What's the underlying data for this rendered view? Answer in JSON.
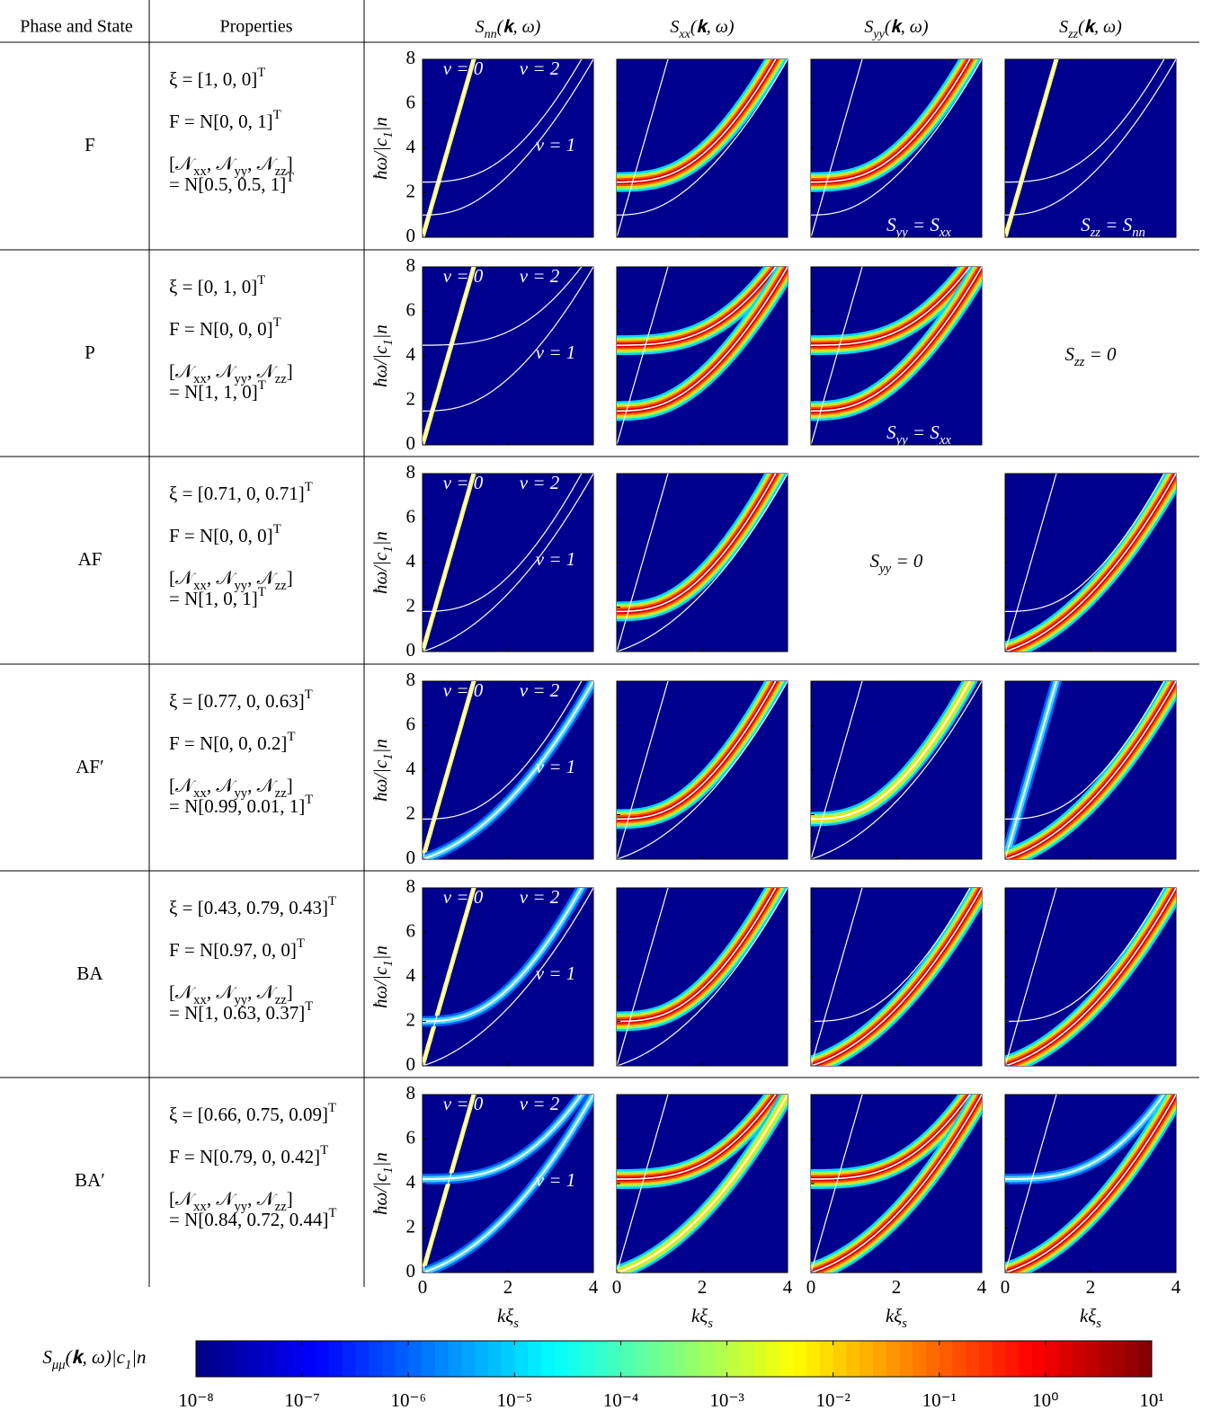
{
  "header": {
    "phase": "Phase and State",
    "properties": "Properties",
    "columns": [
      [
        "S",
        {
          "sub": "nn"
        },
        "(𝐤, ω)"
      ],
      [
        "S",
        {
          "sub": "xx"
        },
        "(𝐤, ω)"
      ],
      [
        "S",
        {
          "sub": "yy"
        },
        "(𝐤, ω)"
      ],
      [
        "S",
        {
          "sub": "zz"
        },
        "(𝐤, ω)"
      ]
    ]
  },
  "rows": [
    {
      "phase": "F",
      "xi": [
        "ξ = [1, 0, 0]",
        {
          "sup": "T"
        }
      ],
      "F": [
        "F = N[0, 0, 1]",
        {
          "sup": "T"
        }
      ],
      "N": [
        "[𝒩",
        {
          "sub": "xx"
        },
        ", 𝒩",
        {
          "sub": "yy"
        },
        ", 𝒩",
        {
          "sub": "zz"
        },
        "]"
      ],
      "N_value": [
        "= N[0.5, 0.5, 1]",
        {
          "sup": "T"
        }
      ],
      "nu_labels": [
        "ν = 0",
        "ν = 2",
        "ν = 1"
      ],
      "panels": [
        {
          "type": "plot"
        },
        {
          "type": "plot"
        },
        {
          "type": "plot",
          "note": [
            "S",
            {
              "sub": "yy"
            },
            " = S",
            {
              "sub": "xx"
            }
          ]
        },
        {
          "type": "plot",
          "note": [
            "S",
            {
              "sub": "zz"
            },
            " = S",
            {
              "sub": "nn"
            }
          ]
        }
      ]
    },
    {
      "phase": "P",
      "xi": [
        "ξ = [0, 1, 0]",
        {
          "sup": "T"
        }
      ],
      "F": [
        "F = N[0, 0, 0]",
        {
          "sup": "T"
        }
      ],
      "N": [
        "[𝒩",
        {
          "sub": "xx"
        },
        ", 𝒩",
        {
          "sub": "yy"
        },
        ", 𝒩",
        {
          "sub": "zz"
        },
        "]"
      ],
      "N_value": [
        "= N[1, 1, 0]",
        {
          "sup": "T"
        }
      ],
      "nu_labels": [
        "ν = 0",
        "ν = 2",
        "ν = 1"
      ],
      "panels": [
        {
          "type": "plot"
        },
        {
          "type": "plot"
        },
        {
          "type": "plot",
          "note": [
            "S",
            {
              "sub": "yy"
            },
            " = S",
            {
              "sub": "xx"
            }
          ]
        },
        {
          "type": "blank",
          "note": [
            "S",
            {
              "sub": "zz"
            },
            " = 0"
          ]
        }
      ]
    },
    {
      "phase": "AF",
      "xi": [
        "ξ = [0.71, 0, 0.71]",
        {
          "sup": "T"
        }
      ],
      "F": [
        "F = N[0, 0, 0]",
        {
          "sup": "T"
        }
      ],
      "N": [
        "[𝒩",
        {
          "sub": "xx"
        },
        ", 𝒩",
        {
          "sub": "yy"
        },
        ", 𝒩",
        {
          "sub": "zz"
        },
        "]"
      ],
      "N_value": [
        "= N[1, 0, 1]",
        {
          "sup": "T"
        }
      ],
      "nu_labels": [
        "ν = 0",
        "ν = 2",
        "ν = 1"
      ],
      "panels": [
        {
          "type": "plot"
        },
        {
          "type": "plot"
        },
        {
          "type": "blank",
          "note": [
            "S",
            {
              "sub": "yy"
            },
            " = 0"
          ]
        },
        {
          "type": "plot"
        }
      ]
    },
    {
      "phase": "AF′",
      "xi": [
        "ξ = [0.77, 0, 0.63]",
        {
          "sup": "T"
        }
      ],
      "F": [
        "F = N[0, 0, 0.2]",
        {
          "sup": "T"
        }
      ],
      "N": [
        "[𝒩",
        {
          "sub": "xx"
        },
        ", 𝒩",
        {
          "sub": "yy"
        },
        ", 𝒩",
        {
          "sub": "zz"
        },
        "]"
      ],
      "N_value": [
        "= N[0.99, 0.01, 1]",
        {
          "sup": "T"
        }
      ],
      "nu_labels": [
        "ν = 0",
        "ν = 2",
        "ν = 1"
      ],
      "panels": [
        {
          "type": "plot"
        },
        {
          "type": "plot"
        },
        {
          "type": "plot"
        },
        {
          "type": "plot"
        }
      ]
    },
    {
      "phase": "BA",
      "xi": [
        "ξ = [0.43, 0.79, 0.43]",
        {
          "sup": "T"
        }
      ],
      "F": [
        "F = N[0.97, 0, 0]",
        {
          "sup": "T"
        }
      ],
      "N": [
        "[𝒩",
        {
          "sub": "xx"
        },
        ", 𝒩",
        {
          "sub": "yy"
        },
        ", 𝒩",
        {
          "sub": "zz"
        },
        "]"
      ],
      "N_value": [
        "= N[1, 0.63, 0.37]",
        {
          "sup": "T"
        }
      ],
      "nu_labels": [
        "ν = 0",
        "ν = 2",
        "ν = 1"
      ],
      "panels": [
        {
          "type": "plot"
        },
        {
          "type": "plot"
        },
        {
          "type": "plot"
        },
        {
          "type": "plot"
        }
      ]
    },
    {
      "phase": "BA′",
      "xi": [
        "ξ = [0.66, 0.75, 0.09]",
        {
          "sup": "T"
        }
      ],
      "F": [
        "F = N[0.79, 0, 0.42]",
        {
          "sup": "T"
        }
      ],
      "N": [
        "[𝒩",
        {
          "sub": "xx"
        },
        ", 𝒩",
        {
          "sub": "yy"
        },
        ", 𝒩",
        {
          "sub": "zz"
        },
        "]"
      ],
      "N_value": [
        "= N[0.84, 0.72, 0.44]",
        {
          "sup": "T"
        }
      ],
      "nu_labels": [
        "ν = 0",
        "ν = 2",
        "ν = 1"
      ],
      "panels": [
        {
          "type": "plot"
        },
        {
          "type": "plot"
        },
        {
          "type": "plot"
        },
        {
          "type": "plot"
        }
      ]
    }
  ],
  "y_axis": {
    "label": [
      "ħω/|c",
      {
        "sub": "1"
      },
      "|n"
    ],
    "lim": [
      0,
      8
    ],
    "ticks": [
      0,
      2,
      4,
      6,
      8
    ]
  },
  "x_axis": {
    "label": [
      "kξ",
      {
        "sub": "s"
      }
    ],
    "lim": [
      0,
      4
    ],
    "ticks": [
      0,
      2,
      4
    ]
  },
  "colorbar": {
    "label": [
      "S",
      {
        "sub": "μμ"
      },
      "(𝐤, ω)|c",
      {
        "sub": "1"
      },
      "|n"
    ],
    "scale": "log",
    "lim": [
      1e-08,
      10
    ],
    "ticks": [
      {
        "value": 1e-08,
        "label": "10⁻⁸"
      },
      {
        "value": 1e-07,
        "label": "10⁻⁷"
      },
      {
        "value": 1e-06,
        "label": "10⁻⁶"
      },
      {
        "value": 1e-05,
        "label": "10⁻⁵"
      },
      {
        "value": 0.0001,
        "label": "10⁻⁴"
      },
      {
        "value": 0.001,
        "label": "10⁻³"
      },
      {
        "value": 0.01,
        "label": "10⁻²"
      },
      {
        "value": 0.1,
        "label": "10⁻¹"
      },
      {
        "value": 1,
        "label": "10⁰"
      },
      {
        "value": 10,
        "label": "10¹"
      }
    ]
  }
}
